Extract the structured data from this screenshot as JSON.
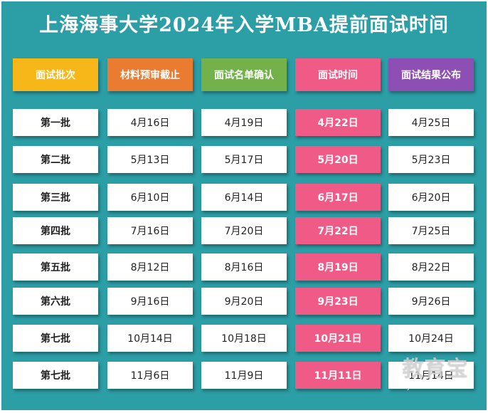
{
  "title": "上海海事大学2024年入学MBA提前面试时间",
  "headers": [
    {
      "label": "面试批次",
      "color": "#f7b718"
    },
    {
      "label": "材料预审截止",
      "color": "#ea7c32"
    },
    {
      "label": "面试名单确认",
      "color": "#73b24a"
    },
    {
      "label": "面试时间",
      "color": "#f05a86"
    },
    {
      "label": "面试结果公布",
      "color": "#8e4fb4"
    }
  ],
  "rows": [
    {
      "batch": "第一批",
      "deadline": "4月16日",
      "confirm": "4月19日",
      "interview": "4月22日",
      "result": "4月25日"
    },
    {
      "batch": "第二批",
      "deadline": "5月13日",
      "confirm": "5月17日",
      "interview": "5月20日",
      "result": "5月23日"
    },
    {
      "batch": "第三批",
      "deadline": "6月10日",
      "confirm": "6月14日",
      "interview": "6月17日",
      "result": "6月20日"
    },
    {
      "batch": "第四批",
      "deadline": "7月16日",
      "confirm": "7月20日",
      "interview": "7月22日",
      "result": "7月25日"
    },
    {
      "batch": "第五批",
      "deadline": "8月12日",
      "confirm": "8月16日",
      "interview": "8月19日",
      "result": "8月22日"
    },
    {
      "batch": "第六批",
      "deadline": "9月16日",
      "confirm": "9月20日",
      "interview": "9月23日",
      "result": "9月26日"
    },
    {
      "batch": "第七批",
      "deadline": "10月14日",
      "confirm": "10月18日",
      "interview": "10月21日",
      "result": "10月24日"
    },
    {
      "batch": "第七批",
      "deadline": "11月6日",
      "confirm": "11月9日",
      "interview": "11月11日",
      "result": "11月14日"
    }
  ],
  "watermark": {
    "main": "教育宝",
    "sub": "JIAOYUBAO.CN"
  },
  "colors": {
    "background": "#2c9ea6",
    "highlight": "#f05a86"
  }
}
